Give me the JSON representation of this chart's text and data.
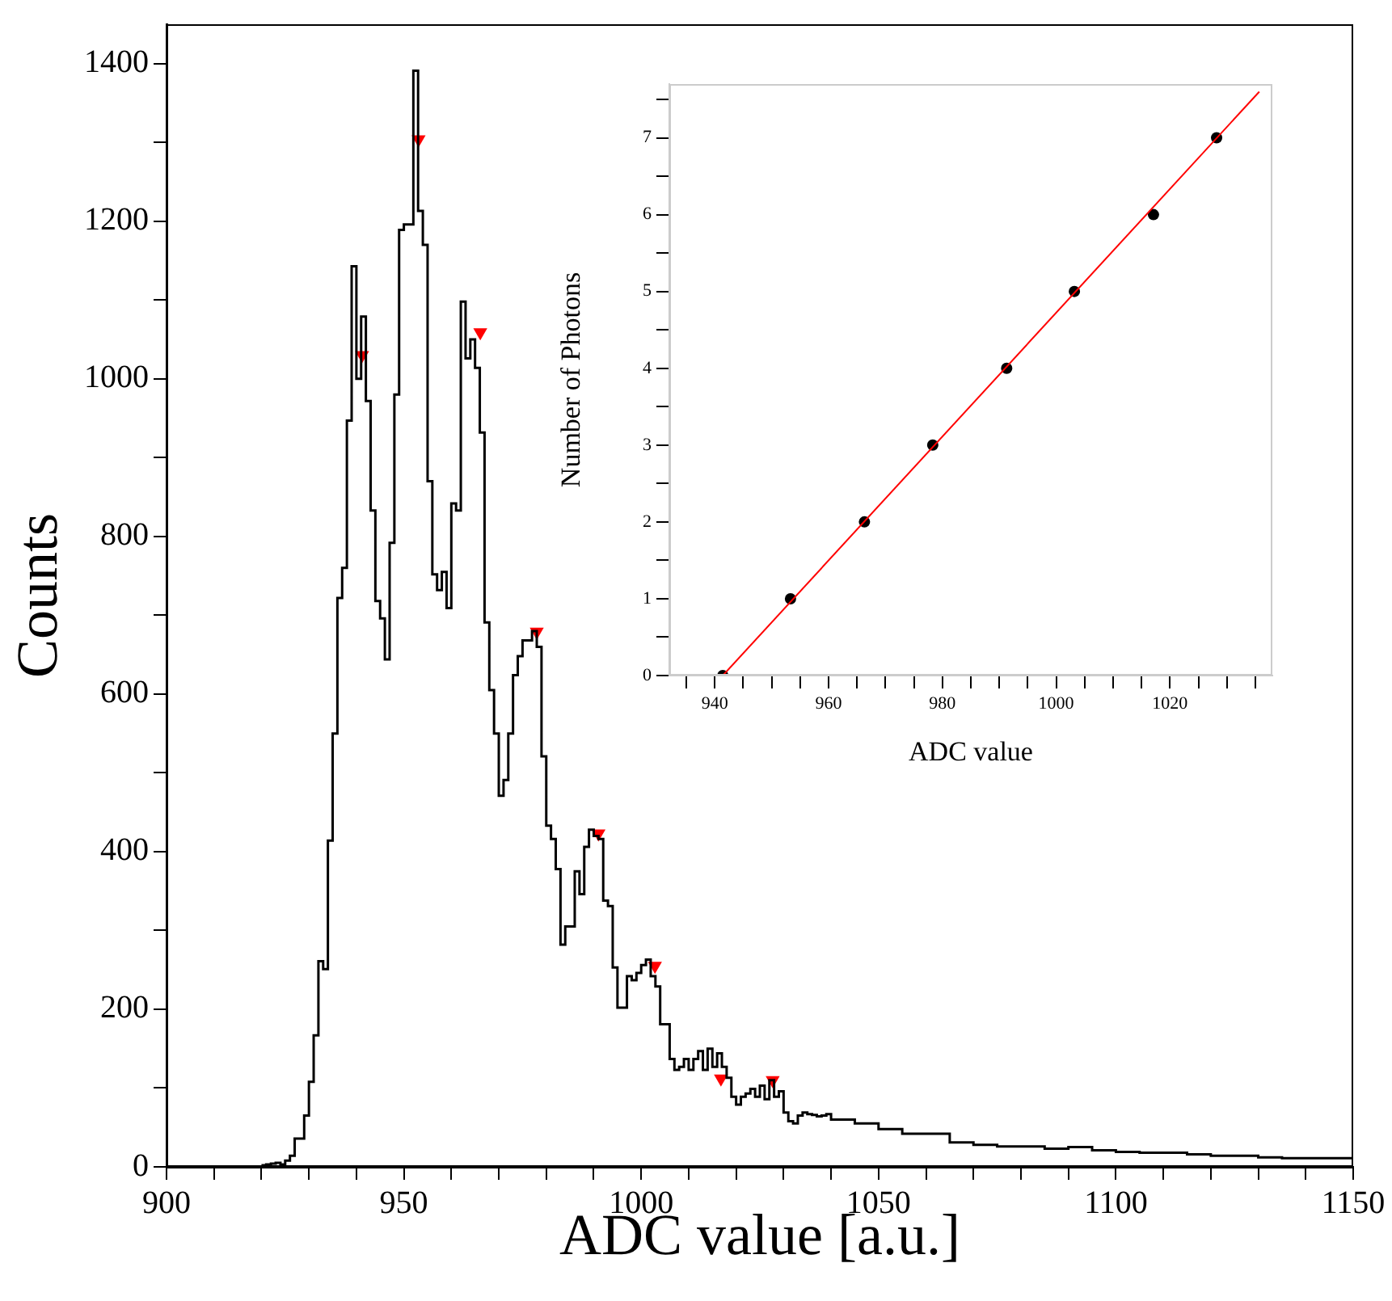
{
  "chart_data": [
    {
      "type": "step",
      "xlabel": "ADC value [a.u.]",
      "ylabel": "Counts",
      "xlim": [
        900,
        1150
      ],
      "ylim": [
        0,
        1450
      ],
      "xticks": [
        900,
        {
          "value": 910,
          "label": null
        },
        {
          "value": 920,
          "label": null
        },
        {
          "value": 930,
          "label": null
        },
        {
          "value": 940,
          "label": null
        },
        950,
        {
          "value": 960,
          "label": null
        },
        {
          "value": 970,
          "label": null
        },
        {
          "value": 980,
          "label": null
        },
        {
          "value": 990,
          "label": null
        },
        1000,
        {
          "value": 1010,
          "label": null
        },
        {
          "value": 1020,
          "label": null
        },
        {
          "value": 1030,
          "label": null
        },
        {
          "value": 1040,
          "label": null
        },
        1050,
        {
          "value": 1060,
          "label": null
        },
        {
          "value": 1070,
          "label": null
        },
        {
          "value": 1080,
          "label": null
        },
        {
          "value": 1090,
          "label": null
        },
        1100,
        {
          "value": 1110,
          "label": null
        },
        {
          "value": 1120,
          "label": null
        },
        {
          "value": 1130,
          "label": null
        },
        {
          "value": 1140,
          "label": null
        },
        1150
      ],
      "yticks": [
        0,
        {
          "value": 100,
          "label": null
        },
        200,
        {
          "value": 300,
          "label": null
        },
        400,
        {
          "value": 500,
          "label": null
        },
        600,
        {
          "value": 700,
          "label": null
        },
        800,
        {
          "value": 900,
          "label": null
        },
        1000,
        {
          "value": 1100,
          "label": null
        },
        1200,
        {
          "value": 1300,
          "label": null
        },
        1400
      ],
      "series": [
        {
          "color": "#000000",
          "x": [
            920,
            921,
            922,
            923,
            924,
            925,
            926,
            927,
            928,
            929,
            930,
            931,
            932,
            933,
            934,
            935,
            936,
            937,
            938,
            939,
            940,
            941,
            942,
            943,
            944,
            945,
            946,
            947,
            948,
            949,
            950,
            951,
            952,
            953,
            954,
            955,
            956,
            957,
            958,
            959,
            960,
            961,
            962,
            963,
            964,
            965,
            966,
            967,
            968,
            969,
            970,
            971,
            972,
            973,
            974,
            975,
            976,
            977,
            978,
            979,
            980,
            981,
            982,
            983,
            984,
            985,
            986,
            987,
            988,
            989,
            990,
            991,
            992,
            993,
            994,
            995,
            996,
            997,
            998,
            999,
            1000,
            1001,
            1002,
            1003,
            1004,
            1005,
            1006,
            1007,
            1008,
            1009,
            1010,
            1011,
            1012,
            1013,
            1014,
            1015,
            1016,
            1017,
            1018,
            1019,
            1020,
            1021,
            1022,
            1023,
            1024,
            1025,
            1026,
            1027,
            1028,
            1029,
            1030,
            1031,
            1032,
            1033,
            1034,
            1035,
            1036,
            1037,
            1038,
            1039,
            1040,
            1045,
            1050,
            1055,
            1060,
            1065,
            1070,
            1075,
            1080,
            1085,
            1090,
            1095,
            1100,
            1105,
            1110,
            1115,
            1120,
            1125,
            1130,
            1135,
            1140,
            1145,
            1150
          ],
          "values": [
            2,
            2,
            3,
            4,
            5,
            3,
            8,
            14,
            36,
            36,
            65,
            108,
            167,
            261,
            251,
            414,
            550,
            722,
            760,
            947,
            1143,
            1000,
            1079,
            972,
            833,
            718,
            696,
            644,
            792,
            980,
            1189,
            1196,
            1196,
            1391,
            1213,
            1170,
            870,
            752,
            732,
            755,
            709,
            842,
            833,
            1098,
            1026,
            1050,
            1014,
            932,
            691,
            605,
            550,
            471,
            491,
            550,
            624,
            648,
            668,
            668,
            680,
            660,
            521,
            433,
            416,
            378,
            282,
            305,
            305,
            375,
            346,
            406,
            428,
            420,
            416,
            338,
            331,
            253,
            202,
            202,
            242,
            237,
            246,
            256,
            263,
            242,
            229,
            181,
            181,
            137,
            123,
            127,
            137,
            123,
            137,
            147,
            123,
            150,
            127,
            144,
            127,
            113,
            89,
            79,
            89,
            93,
            99,
            89,
            103,
            86,
            110,
            89,
            96,
            69,
            58,
            55,
            65,
            69,
            67,
            66,
            64,
            65,
            67,
            60,
            55,
            48,
            42,
            42,
            31,
            28,
            26,
            26,
            23,
            25,
            21,
            19,
            18,
            18,
            16,
            14,
            14,
            12,
            11,
            11,
            11
          ]
        },
        {
          "type": "scatter",
          "color": "#ff0000",
          "marker": "triangle",
          "x": [
            941.2,
            953.1,
            966.1,
            978.0,
            991.0,
            1002.9,
            1016.8,
            1027.7
          ],
          "values": [
            1030,
            1304,
            1059,
            679,
            423,
            255,
            112,
            110
          ]
        }
      ]
    },
    {
      "type": "scatter",
      "xlabel": "ADC value",
      "ylabel": "Number of Photons",
      "xlim": [
        932,
        1038
      ],
      "ylim": [
        0,
        7.7
      ],
      "xticks": [
        {
          "value": 935,
          "label": null
        },
        940,
        {
          "value": 945,
          "label": null
        },
        {
          "value": 950,
          "label": null
        },
        {
          "value": 955,
          "label": null
        },
        960,
        {
          "value": 965,
          "label": null
        },
        {
          "value": 970,
          "label": null
        },
        {
          "value": 975,
          "label": null
        },
        980,
        {
          "value": 985,
          "label": null
        },
        {
          "value": 990,
          "label": null
        },
        {
          "value": 995,
          "label": null
        },
        1000,
        {
          "value": 1005,
          "label": null
        },
        {
          "value": 1010,
          "label": null
        },
        {
          "value": 1015,
          "label": null
        },
        1020,
        {
          "value": 1025,
          "label": null
        },
        {
          "value": 1030,
          "label": null
        },
        {
          "value": 1035,
          "label": null
        }
      ],
      "yticks": [
        0,
        {
          "value": 0.5,
          "label": null
        },
        1,
        {
          "value": 1.5,
          "label": null
        },
        2,
        {
          "value": 2.5,
          "label": null
        },
        3,
        {
          "value": 3.5,
          "label": null
        },
        4,
        {
          "value": 4.5,
          "label": null
        },
        5,
        {
          "value": 5.5,
          "label": null
        },
        6,
        {
          "value": 6.5,
          "label": null
        },
        7,
        {
          "value": 7.5,
          "label": null
        }
      ],
      "series": [
        {
          "color": "#000000",
          "marker": "circle",
          "x": [
            941.4,
            953.3,
            966.3,
            978.3,
            991.3,
            1003.2,
            1017.1,
            1028.2
          ],
          "values": [
            0,
            1,
            2,
            3,
            4,
            5,
            6,
            7
          ]
        },
        {
          "type": "line",
          "color": "#ff0000",
          "x": [
            941.4,
            1035.7
          ],
          "values": [
            0,
            7.6
          ]
        }
      ]
    }
  ]
}
